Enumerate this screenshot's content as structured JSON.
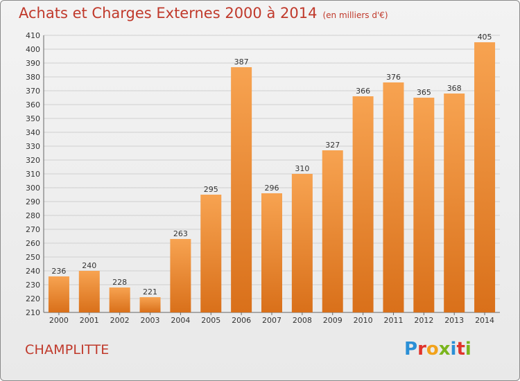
{
  "title": "Achats et Charges Externes 2000 à 2014",
  "unit_note": "(en milliers d'€)",
  "town": "CHAMPLITTE",
  "logo": {
    "text": "Proxiti",
    "letters": [
      {
        "ch": "P",
        "color": "#2a8fd6"
      },
      {
        "ch": "r",
        "color": "#e0332b"
      },
      {
        "ch": "o",
        "color": "#f2a21b"
      },
      {
        "ch": "x",
        "color": "#7ab51d"
      },
      {
        "ch": "i",
        "color": "#2a8fd6"
      },
      {
        "ch": "t",
        "color": "#e0332b"
      },
      {
        "ch": "i",
        "color": "#7ab51d"
      }
    ]
  },
  "colors": {
    "bar_light": "#f7a351",
    "bar_dark": "#d9701a",
    "title": "#c0392b",
    "grid": "#cfcfcf",
    "axis_text": "#333333"
  },
  "chart_data": {
    "type": "bar",
    "categories": [
      "2000",
      "2001",
      "2002",
      "2003",
      "2004",
      "2005",
      "2006",
      "2007",
      "2008",
      "2009",
      "2010",
      "2011",
      "2012",
      "2013",
      "2014"
    ],
    "values": [
      236,
      240,
      228,
      221,
      263,
      295,
      387,
      296,
      310,
      327,
      366,
      376,
      365,
      368,
      405
    ],
    "ylim": [
      210,
      410
    ],
    "ytick_step": 10,
    "grid": true
  }
}
